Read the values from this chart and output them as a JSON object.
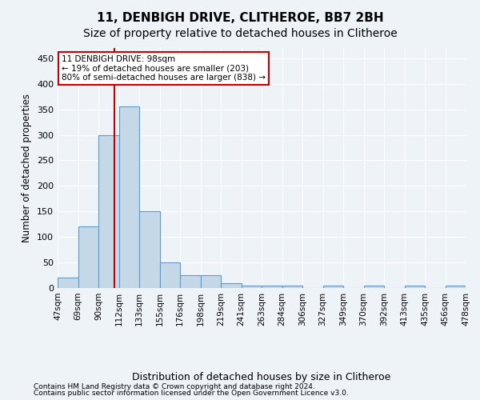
{
  "title": "11, DENBIGH DRIVE, CLITHEROE, BB7 2BH",
  "subtitle": "Size of property relative to detached houses in Clitheroe",
  "xlabel": "Distribution of detached houses by size in Clitheroe",
  "ylabel": "Number of detached properties",
  "footer1": "Contains HM Land Registry data © Crown copyright and database right 2024.",
  "footer2": "Contains public sector information licensed under the Open Government Licence v3.0.",
  "bin_labels": [
    "47sqm",
    "69sqm",
    "90sqm",
    "112sqm",
    "133sqm",
    "155sqm",
    "176sqm",
    "198sqm",
    "219sqm",
    "241sqm",
    "263sqm",
    "284sqm",
    "306sqm",
    "327sqm",
    "349sqm",
    "370sqm",
    "392sqm",
    "413sqm",
    "435sqm",
    "456sqm",
    "478sqm"
  ],
  "bar_values": [
    20,
    120,
    300,
    355,
    150,
    50,
    25,
    25,
    10,
    5,
    5,
    5,
    0,
    5,
    0,
    5,
    0,
    5,
    0,
    5
  ],
  "bar_color": "#c5d8e8",
  "bar_edge_color": "#5b9bd5",
  "vline_x": 2.3,
  "vline_color": "#c00000",
  "annotation_text": "11 DENBIGH DRIVE: 98sqm\n← 19% of detached houses are smaller (203)\n80% of semi-detached houses are larger (838) →",
  "annotation_box_color": "#c00000",
  "ylim": [
    0,
    470
  ],
  "yticks": [
    0,
    50,
    100,
    150,
    200,
    250,
    300,
    350,
    400,
    450
  ],
  "bg_color": "#eef3f8",
  "plot_bg_color": "#eef3f8",
  "grid_color": "#ffffff",
  "title_fontsize": 11,
  "subtitle_fontsize": 10
}
